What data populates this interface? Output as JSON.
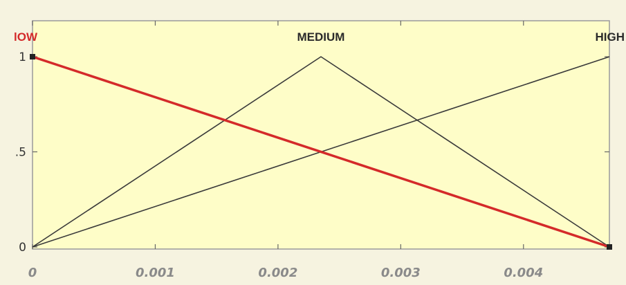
{
  "chart_data": {
    "type": "line",
    "title": "",
    "xlabel": "",
    "ylabel": "",
    "xlim": [
      0,
      0.0047
    ],
    "ylim": [
      0,
      1
    ],
    "xticks": [
      "0",
      "0.001",
      "0.002",
      "0.003",
      "0.004"
    ],
    "xtick_values": [
      0,
      0.001,
      0.002,
      0.003,
      0.004
    ],
    "yticks": [
      "0",
      ".5",
      "1"
    ],
    "ytick_values": [
      0,
      0.5,
      1
    ],
    "series": [
      {
        "name": "lOW",
        "color": "#d42a2a",
        "highlight": true,
        "x": [
          0,
          0.0047
        ],
        "y": [
          1,
          0
        ]
      },
      {
        "name": "MEDIUM",
        "color": "#3a3a3a",
        "highlight": false,
        "x": [
          0,
          0.00235,
          0.0047
        ],
        "y": [
          0,
          1,
          0
        ]
      },
      {
        "name": "HIGH",
        "color": "#3a3a3a",
        "highlight": false,
        "x": [
          0,
          0.0047
        ],
        "y": [
          0,
          1
        ]
      }
    ],
    "colors": {
      "plot_bg": "#fefdc8",
      "frame": "#9a9a9a",
      "tick": "#666666"
    }
  }
}
